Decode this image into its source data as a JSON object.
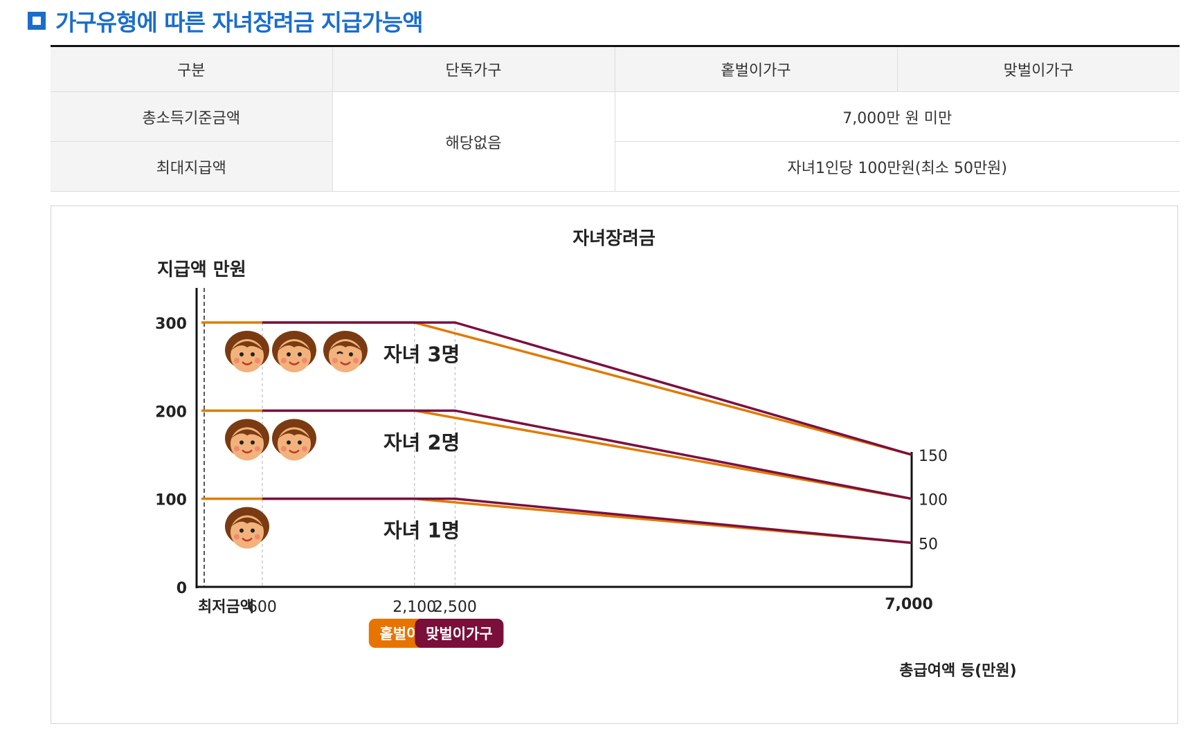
{
  "section_title": "가구유형에 따른 자녀장려금 지급가능액",
  "table": {
    "headers": [
      "구분",
      "단독가구",
      "홑벌이가구",
      "맞벌이가구"
    ],
    "row1_label": "총소득기준금액",
    "row2_label": "최대지급액",
    "single_value": "해당없음",
    "row1_value": "7,000만 원 미만",
    "row2_value": "자녀1인당 100만원(최소 50만원)"
  },
  "chart_data": {
    "type": "line",
    "title": "자녀장려금",
    "ylabel": "지급액 만원",
    "xlabel": "총급여액 등(만원)",
    "xlim": [
      0,
      7000
    ],
    "ylim": [
      0,
      300
    ],
    "x_ticks": [
      {
        "value": 0,
        "label": "최저금액"
      },
      {
        "value": 600,
        "label": "600"
      },
      {
        "value": 2100,
        "label": "2,100"
      },
      {
        "value": 2500,
        "label": "2,500"
      },
      {
        "value": 7000,
        "label": "7,000"
      }
    ],
    "y_ticks": [
      0,
      100,
      200,
      300
    ],
    "right_labels": [
      {
        "value": 150,
        "label": "150"
      },
      {
        "value": 100,
        "label": "100"
      },
      {
        "value": 50,
        "label": "50"
      }
    ],
    "child_labels": [
      {
        "label": "자녀 3명",
        "faces": 3,
        "y": 300
      },
      {
        "label": "자녀 2명",
        "faces": 2,
        "y": 200
      },
      {
        "label": "자녀 1명",
        "faces": 1,
        "y": 100
      }
    ],
    "series": [
      {
        "name": "홑벌이가구",
        "color": "#e07b00",
        "lines": [
          {
            "x": [
              0,
              2100,
              7000
            ],
            "y": [
              300,
              300,
              150
            ]
          },
          {
            "x": [
              0,
              2100,
              7000
            ],
            "y": [
              200,
              200,
              100
            ]
          },
          {
            "x": [
              0,
              2100,
              7000
            ],
            "y": [
              100,
              100,
              50
            ]
          }
        ]
      },
      {
        "name": "맞벌이가구",
        "color": "#7a1040",
        "lines": [
          {
            "x": [
              600,
              2500,
              7000
            ],
            "y": [
              300,
              300,
              150
            ]
          },
          {
            "x": [
              600,
              2500,
              7000
            ],
            "y": [
              200,
              200,
              100
            ]
          },
          {
            "x": [
              600,
              2500,
              7000
            ],
            "y": [
              100,
              100,
              50
            ]
          }
        ]
      }
    ],
    "legend": [
      {
        "label": "홑벌이가구",
        "color": "#e87400"
      },
      {
        "label": "맞벌이가구",
        "color": "#7a0f3a"
      }
    ]
  }
}
